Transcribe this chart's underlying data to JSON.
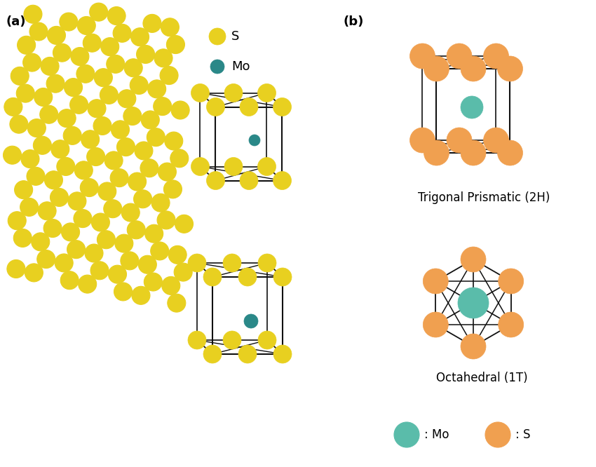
{
  "bg_color": "#ffffff",
  "S_yellow": "#e8d020",
  "Mo_teal": "#2a8888",
  "S_orange": "#f0a050",
  "Mo_green": "#5abcaa",
  "box_color": "#111111",
  "bond_color_a": "#2a8888",
  "label_a": "(a)",
  "label_b": "(b)",
  "legend_S": "S",
  "legend_Mo": "Mo",
  "text_2H": "Trigonal Prismatic (2H)",
  "text_1T": "Octahedral (1T)",
  "text_mo_leg": ": Mo",
  "text_s_leg": ": S"
}
